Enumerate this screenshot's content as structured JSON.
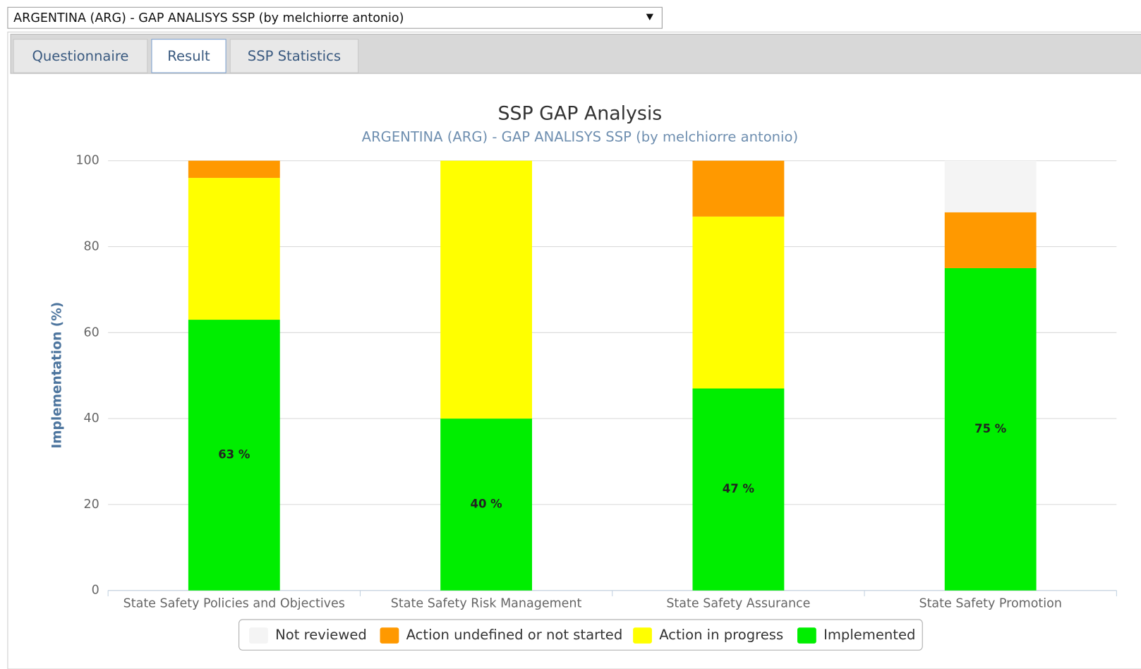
{
  "ui": {
    "dropdown": "ARGENTINA (ARG) - GAP ANALISYS SSP (by melchiorre antonio)",
    "tabs": [
      "Questionnaire",
      "Result",
      "SSP Statistics"
    ]
  },
  "chart_data": {
    "type": "bar",
    "stacked": true,
    "title": "SSP GAP Analysis",
    "subtitle": "ARGENTINA (ARG) - GAP ANALISYS SSP (by melchiorre antonio)",
    "y_label": "Implementation (%)",
    "categories": [
      "State Safety Policies and Objectives",
      "State Safety Risk Management",
      "State Safety Assurance",
      "State Safety Promotion"
    ],
    "series": [
      {
        "name": "Not reviewed",
        "color": "#f4f4f4",
        "values": [
          0,
          0,
          0,
          12
        ]
      },
      {
        "name": "Action undefined or not started",
        "color": "#ff9900",
        "values": [
          4,
          0,
          13,
          13
        ]
      },
      {
        "name": "Action in progress",
        "color": "#ffff00",
        "values": [
          33,
          60,
          40,
          0
        ]
      },
      {
        "name": "Implemented",
        "color": "#00ee00",
        "values": [
          63,
          40,
          47,
          75
        ],
        "value_labels": [
          "63 %",
          "40 %",
          "47 %",
          "75 %"
        ]
      }
    ],
    "ylim": [
      0,
      100
    ],
    "yticks": [
      0,
      20,
      40,
      60,
      80,
      100
    ],
    "grid": true,
    "legend": "bottom"
  }
}
